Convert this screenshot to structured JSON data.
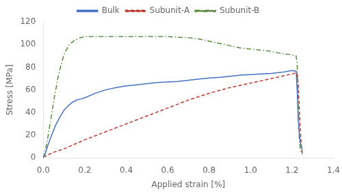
{
  "chart_data": {
    "type": "line",
    "xlabel": "Applied strain [%]",
    "ylabel": "Stress [MPa]",
    "xlim": [
      0,
      1.4
    ],
    "ylim": [
      0,
      120
    ],
    "xticks": [
      {
        "value": 0,
        "label": "0.0"
      },
      0.2,
      0.4,
      0.6,
      0.8,
      {
        "value": 1.0,
        "label": "1.0"
      },
      1.2,
      1.4
    ],
    "yticks": [
      0,
      20,
      40,
      60,
      80,
      100,
      120
    ],
    "grid": false,
    "legend": "top",
    "series": [
      {
        "name": "Bulk",
        "color": "#4472C4",
        "line_style": "solid",
        "x": [
          0,
          0.01,
          0.02,
          0.04,
          0.06,
          0.08,
          0.1,
          0.12,
          0.14,
          0.16,
          0.18,
          0.2,
          0.25,
          0.3,
          0.35,
          0.4,
          0.45,
          0.5,
          0.55,
          0.6,
          0.65,
          0.7,
          0.75,
          0.8,
          0.85,
          0.9,
          0.95,
          1.0,
          1.05,
          1.1,
          1.15,
          1.2,
          1.22,
          1.225,
          1.23,
          1.235,
          1.24,
          1.245,
          1.25
        ],
        "values": [
          0,
          4,
          10,
          20,
          29,
          36,
          42,
          46,
          49,
          51,
          52,
          53,
          57,
          60,
          62,
          63.5,
          64.5,
          65.5,
          66.5,
          67,
          67.5,
          68.5,
          69.5,
          70.5,
          71,
          72,
          73,
          73.5,
          74,
          74.5,
          75.5,
          77,
          76.5,
          60,
          35,
          22,
          14,
          10,
          7
        ]
      },
      {
        "name": "Subunit-A",
        "color": "#C0392B",
        "line_style": "dashed",
        "x": [
          0,
          0.01,
          0.02,
          0.05,
          0.1,
          0.15,
          0.2,
          0.3,
          0.4,
          0.5,
          0.6,
          0.7,
          0.8,
          0.9,
          1.0,
          1.1,
          1.2,
          1.22,
          1.225,
          1.23,
          1.235,
          1.24,
          1.245,
          1.25
        ],
        "values": [
          1,
          1.5,
          2.5,
          5,
          8,
          12,
          16,
          23,
          30,
          37,
          44,
          51,
          57,
          62,
          66,
          70,
          74,
          75,
          74,
          65,
          45,
          25,
          12,
          3
        ]
      },
      {
        "name": "Subunit-B",
        "color": "#5B8C3E",
        "line_style": "dashdot",
        "x": [
          0,
          0.01,
          0.02,
          0.03,
          0.04,
          0.05,
          0.06,
          0.07,
          0.08,
          0.09,
          0.1,
          0.11,
          0.12,
          0.13,
          0.14,
          0.15,
          0.16,
          0.17,
          0.18,
          0.2,
          0.25,
          0.3,
          0.4,
          0.5,
          0.6,
          0.7,
          0.75,
          0.8,
          0.85,
          0.9,
          0.95,
          1.0,
          1.05,
          1.1,
          1.15,
          1.2,
          1.22,
          1.225,
          1.23,
          1.235,
          1.24,
          1.245,
          1.25
        ],
        "values": [
          0,
          7,
          16,
          27,
          38,
          50,
          60,
          70,
          78,
          85,
          91,
          95,
          98,
          101,
          102,
          104,
          104.5,
          105.5,
          106,
          107,
          107,
          107,
          107,
          107,
          107,
          106,
          105,
          103,
          101,
          99,
          97,
          96,
          95,
          94,
          92,
          91,
          90,
          82,
          50,
          18,
          8,
          5,
          3
        ]
      }
    ]
  }
}
